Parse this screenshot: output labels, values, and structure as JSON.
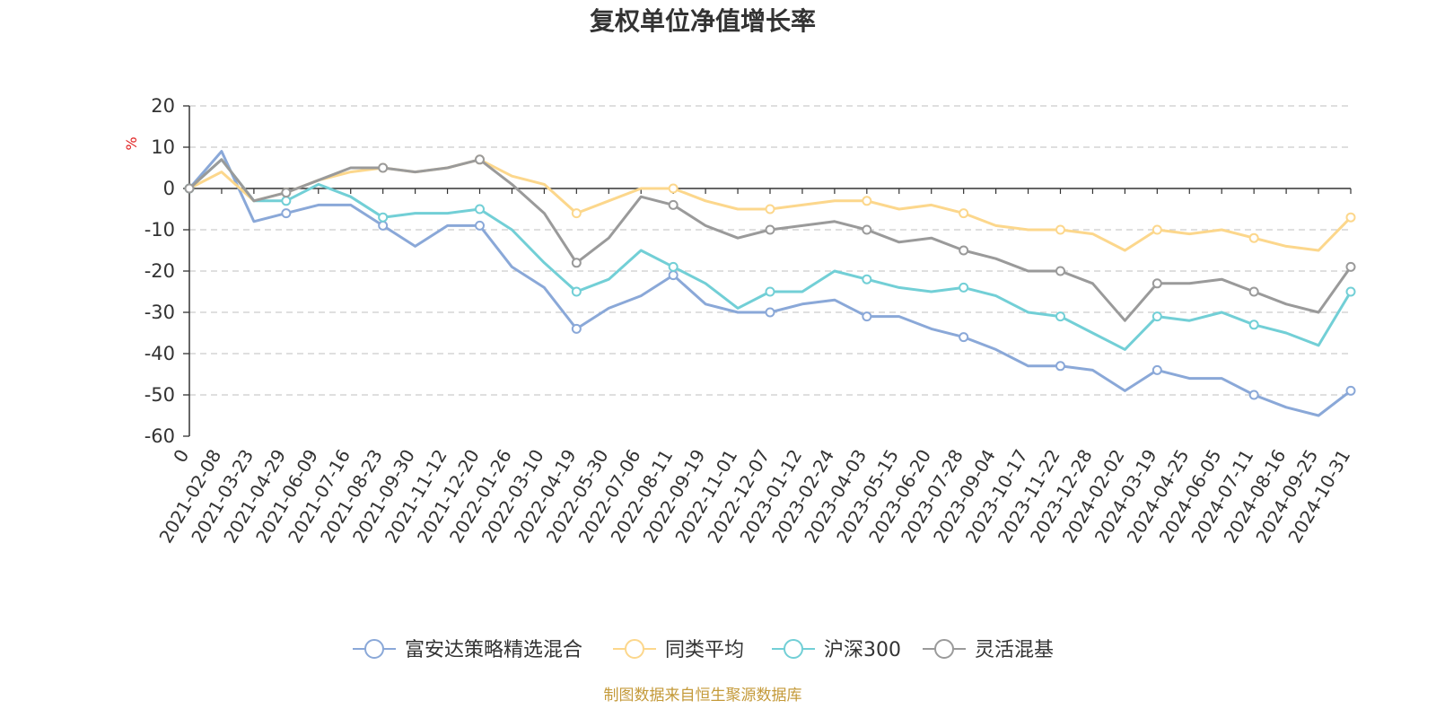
{
  "chart_data": {
    "type": "line",
    "title": "复权单位净值增长率",
    "ylabel": "%",
    "ylim": [
      -60,
      20
    ],
    "yticks": [
      20,
      10,
      0,
      -10,
      -20,
      -30,
      -40,
      -50,
      -60
    ],
    "grid": true,
    "legend_position": "bottom-center",
    "x": [
      "0",
      "2021-02-08",
      "2021-03-23",
      "2021-04-29",
      "2021-06-09",
      "2021-07-16",
      "2021-08-23",
      "2021-09-30",
      "2021-11-12",
      "2021-12-20",
      "2022-01-26",
      "2022-03-10",
      "2022-04-19",
      "2022-05-30",
      "2022-07-06",
      "2022-08-11",
      "2022-09-19",
      "2022-11-01",
      "2022-12-07",
      "2023-01-12",
      "2023-02-24",
      "2023-04-03",
      "2023-05-15",
      "2023-06-20",
      "2023-07-28",
      "2023-09-04",
      "2023-10-17",
      "2023-11-22",
      "2023-12-28",
      "2024-02-02",
      "2024-03-19",
      "2024-04-25",
      "2024-06-05",
      "2024-07-11",
      "2024-08-16",
      "2024-09-25",
      "2024-10-31"
    ],
    "series": [
      {
        "name": "富安达策略精选混合",
        "color": "#8aa8d8",
        "values": [
          0,
          9,
          -8,
          -6,
          -4,
          -4,
          -9,
          -14,
          -9,
          -9,
          -19,
          -24,
          -34,
          -29,
          -26,
          -21,
          -28,
          -30,
          -30,
          -28,
          -27,
          -31,
          -31,
          -34,
          -36,
          -39,
          -43,
          -43,
          -44,
          -49,
          -44,
          -46,
          -46,
          -50,
          -53,
          -55,
          -49
        ]
      },
      {
        "name": "同类平均",
        "color": "#fcd78c",
        "values": [
          0,
          4,
          -3,
          -1,
          2,
          4,
          5,
          4,
          5,
          7,
          3,
          1,
          -6,
          -3,
          0,
          0,
          -3,
          -5,
          -5,
          -4,
          -3,
          -3,
          -5,
          -4,
          -6,
          -9,
          -10,
          -10,
          -11,
          -15,
          -10,
          -11,
          -10,
          -12,
          -14,
          -15,
          -7
        ]
      },
      {
        "name": "沪深300",
        "color": "#72cfd6",
        "values": [
          0,
          7,
          -3,
          -3,
          1,
          -2,
          -7,
          -6,
          -6,
          -5,
          -10,
          -18,
          -25,
          -22,
          -15,
          -19,
          -23,
          -29,
          -25,
          -25,
          -20,
          -22,
          -24,
          -25,
          -24,
          -26,
          -30,
          -31,
          -35,
          -39,
          -31,
          -32,
          -30,
          -33,
          -35,
          -38,
          -25
        ]
      },
      {
        "name": "灵活混基",
        "color": "#9a9a9a",
        "values": [
          0,
          7,
          -3,
          -1,
          2,
          5,
          5,
          4,
          5,
          7,
          1,
          -6,
          -18,
          -12,
          -2,
          -4,
          -9,
          -12,
          -10,
          -9,
          -8,
          -10,
          -13,
          -12,
          -15,
          -17,
          -20,
          -20,
          -23,
          -32,
          -23,
          -23,
          -22,
          -25,
          -28,
          -30,
          -19
        ]
      }
    ]
  },
  "source_note": "制图数据来自恒生聚源数据库"
}
